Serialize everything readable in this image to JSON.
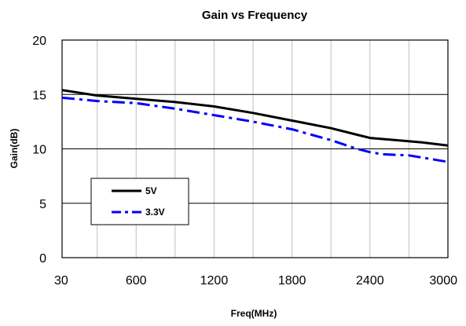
{
  "chart_data": {
    "type": "line",
    "title": "Gain vs Frequency",
    "xlabel": "Freq(MHz)",
    "ylabel": "Gain(dB)",
    "xlim": [
      30,
      3000
    ],
    "ylim": [
      0,
      20
    ],
    "x_tick_labels": [
      "30",
      "600",
      "1200",
      "1800",
      "2400",
      "3000"
    ],
    "y_tick_labels": [
      "0",
      "5",
      "10",
      "15",
      "20"
    ],
    "grid": true,
    "legend_position": "lower-left",
    "series": [
      {
        "name": "5V",
        "color": "#000000",
        "style": "solid",
        "x": [
          30,
          300,
          600,
          900,
          1200,
          1500,
          1800,
          2100,
          2300,
          2400,
          2500,
          2600,
          2800,
          3000
        ],
        "y": [
          15.4,
          14.9,
          14.6,
          14.3,
          13.9,
          13.3,
          12.6,
          11.9,
          11.3,
          11.0,
          10.9,
          10.8,
          10.6,
          10.3
        ]
      },
      {
        "name": "3.3V",
        "color": "#0000ff",
        "style": "dashdot",
        "x": [
          30,
          300,
          600,
          900,
          1200,
          1500,
          1800,
          2100,
          2300,
          2400,
          2500,
          2700,
          2900,
          3000
        ],
        "y": [
          14.7,
          14.4,
          14.2,
          13.7,
          13.1,
          12.5,
          11.8,
          10.8,
          10.0,
          9.7,
          9.5,
          9.4,
          9.0,
          8.8
        ]
      }
    ]
  }
}
